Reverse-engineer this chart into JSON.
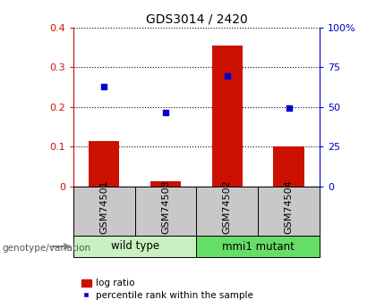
{
  "title": "GDS3014 / 2420",
  "samples": [
    "GSM74501",
    "GSM74503",
    "GSM74502",
    "GSM74504"
  ],
  "log_ratio": [
    0.115,
    0.012,
    0.354,
    0.1
  ],
  "percentile_rank": [
    63.0,
    46.5,
    69.5,
    49.5
  ],
  "groups": [
    {
      "label": "wild type",
      "indices": [
        0,
        1
      ],
      "color": "#c8f0c0"
    },
    {
      "label": "mmi1 mutant",
      "indices": [
        2,
        3
      ],
      "color": "#66dd66"
    }
  ],
  "ylim_left": [
    0,
    0.4
  ],
  "ylim_right": [
    0,
    100
  ],
  "yticks_left": [
    0,
    0.1,
    0.2,
    0.3,
    0.4
  ],
  "ytick_labels_left": [
    "0",
    "0.1",
    "0.2",
    "0.3",
    "0.4"
  ],
  "yticks_right": [
    0,
    25,
    50,
    75,
    100
  ],
  "ytick_labels_right": [
    "0",
    "25",
    "50",
    "75",
    "100%"
  ],
  "bar_color": "#cc1100",
  "scatter_color": "#0000cc",
  "bg_color": "#ffffff",
  "tick_area_color": "#c8c8c8",
  "legend_items": [
    "log ratio",
    "percentile rank within the sample"
  ],
  "genotype_label": "genotype/variation"
}
